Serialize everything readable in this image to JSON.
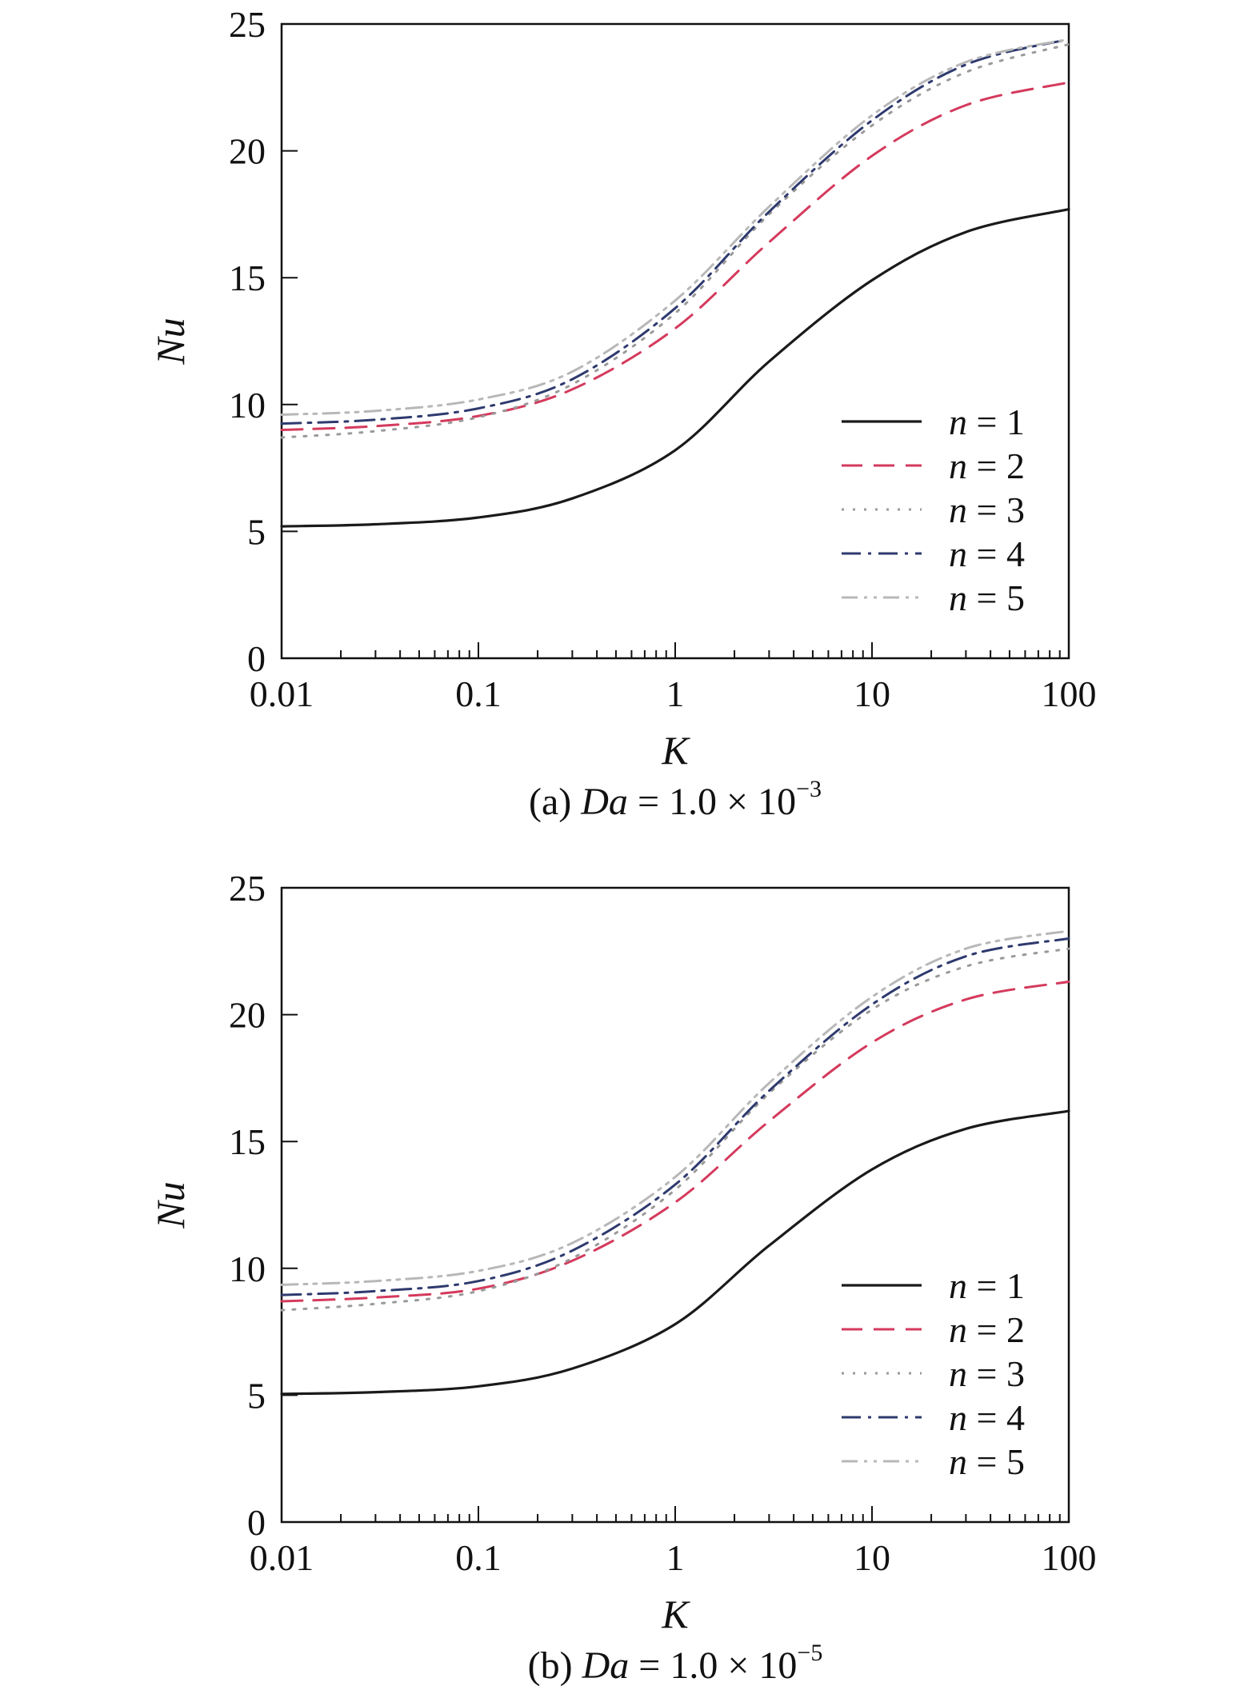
{
  "chart_data": [
    {
      "type": "line",
      "caption": {
        "prefix": "(a) ",
        "var": "Da",
        "equation": " = 1.0 × 10",
        "exponent": "−3"
      },
      "xlabel": "K",
      "ylabel": "Nu",
      "xscale": "log",
      "xlim": [
        0.01,
        100
      ],
      "ylim": [
        0,
        25
      ],
      "xticks": [
        "0.01",
        "0.1",
        "1",
        "10",
        "100"
      ],
      "yticks": [
        "0",
        "5",
        "10",
        "15",
        "20",
        "25"
      ],
      "legend_position": "center-right",
      "x": [
        0.01,
        0.03,
        0.1,
        0.3,
        1,
        3,
        10,
        30,
        100
      ],
      "series": [
        {
          "name_var": "n",
          "name_eq": " = 1",
          "style": "solid",
          "color": "#1a1a1a",
          "values": [
            5.2,
            5.28,
            5.55,
            6.3,
            8.2,
            11.7,
            14.9,
            16.8,
            17.7
          ]
        },
        {
          "name_var": "n",
          "name_eq": " = 2",
          "style": "dashed",
          "color": "#d43a5c",
          "values": [
            9.0,
            9.15,
            9.55,
            10.6,
            13.0,
            16.4,
            19.8,
            21.8,
            22.7
          ]
        },
        {
          "name_var": "n",
          "name_eq": " = 3",
          "style": "dotted",
          "color": "#9a9a9a",
          "values": [
            8.7,
            8.95,
            9.5,
            10.8,
            13.6,
            17.5,
            21.0,
            23.1,
            24.2
          ]
        },
        {
          "name_var": "n",
          "name_eq": " = 4",
          "style": "dashdot",
          "color": "#2e3a6e",
          "values": [
            9.25,
            9.4,
            9.85,
            11.0,
            13.8,
            17.6,
            21.2,
            23.4,
            24.4
          ]
        },
        {
          "name_var": "n",
          "name_eq": " = 5",
          "style": "dashdotdot",
          "color": "#b8b8b8",
          "values": [
            9.6,
            9.75,
            10.2,
            11.3,
            14.1,
            17.8,
            21.4,
            23.5,
            24.4
          ]
        }
      ]
    },
    {
      "type": "line",
      "caption": {
        "prefix": "(b) ",
        "var": "Da",
        "equation": " = 1.0 × 10",
        "exponent": "−5"
      },
      "xlabel": "K",
      "ylabel": "Nu",
      "xscale": "log",
      "xlim": [
        0.01,
        100
      ],
      "ylim": [
        0,
        25
      ],
      "xticks": [
        "0.01",
        "0.1",
        "1",
        "10",
        "100"
      ],
      "yticks": [
        "0",
        "5",
        "10",
        "15",
        "20",
        "25"
      ],
      "legend_position": "center-right",
      "x": [
        0.01,
        0.03,
        0.1,
        0.3,
        1,
        3,
        10,
        30,
        100
      ],
      "series": [
        {
          "name_var": "n",
          "name_eq": " = 1",
          "style": "solid",
          "color": "#1a1a1a",
          "values": [
            5.05,
            5.12,
            5.35,
            6.05,
            7.8,
            10.9,
            13.9,
            15.5,
            16.2
          ]
        },
        {
          "name_var": "n",
          "name_eq": " = 2",
          "style": "dashed",
          "color": "#d43a5c",
          "values": [
            8.7,
            8.85,
            9.2,
            10.3,
            12.6,
            15.8,
            18.9,
            20.6,
            21.3
          ]
        },
        {
          "name_var": "n",
          "name_eq": " = 3",
          "style": "dotted",
          "color": "#9a9a9a",
          "values": [
            8.35,
            8.6,
            9.1,
            10.4,
            13.1,
            16.9,
            20.2,
            21.9,
            22.6
          ]
        },
        {
          "name_var": "n",
          "name_eq": " = 4",
          "style": "dashdot",
          "color": "#2e3a6e",
          "values": [
            8.95,
            9.1,
            9.5,
            10.7,
            13.3,
            17.0,
            20.4,
            22.3,
            23.0
          ]
        },
        {
          "name_var": "n",
          "name_eq": " = 5",
          "style": "dashdotdot",
          "color": "#b8b8b8",
          "values": [
            9.35,
            9.5,
            9.9,
            11.0,
            13.6,
            17.3,
            20.7,
            22.6,
            23.3
          ]
        }
      ]
    }
  ]
}
